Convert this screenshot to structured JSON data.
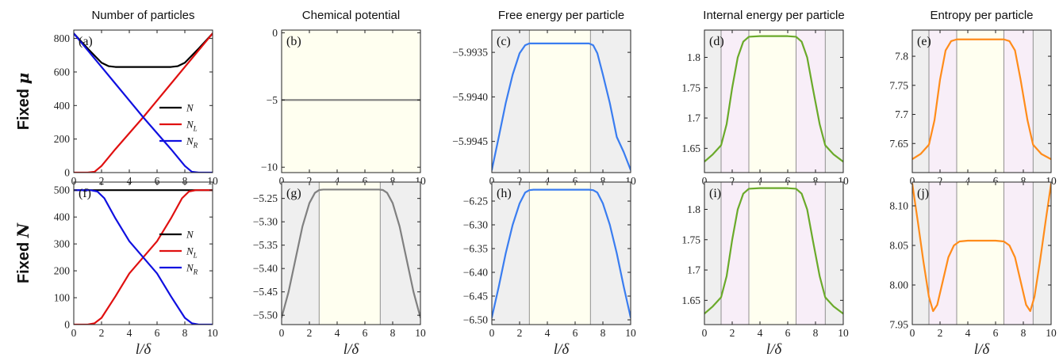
{
  "figure": {
    "column_titles": [
      "Number of particles",
      "Chemical potential",
      "Free energy per particle",
      "Internal energy per particle",
      "Entropy per particle"
    ],
    "row_labels": [
      {
        "text": "Fixed ",
        "symbol": "μ"
      },
      {
        "text": "Fixed ",
        "symbol": "N"
      }
    ],
    "xlabel": "l/δ",
    "colors": {
      "N": "#000000",
      "N_L": "#e01010",
      "N_R": "#1010e0",
      "chemical": "#808080",
      "free": "#3a7df0",
      "internal": "#6aaa2a",
      "entropy": "#ff8c1a",
      "bg_gray": "#efefef",
      "bg_yellow": "#fffff0",
      "bg_pink": "#f8eef8"
    }
  },
  "chart_data": [
    {
      "id": "a",
      "label": "(a)",
      "type": "line",
      "row": 0,
      "col": 0,
      "xlim": [
        0,
        10
      ],
      "ylim": [
        0,
        850
      ],
      "xticks": [
        0,
        2,
        4,
        6,
        8,
        10
      ],
      "yticks": [
        0,
        200,
        400,
        600,
        800
      ],
      "legend": {
        "position": "right",
        "entries": [
          {
            "name": "N",
            "sub": "",
            "color": "#000000"
          },
          {
            "name": "N",
            "sub": "L",
            "color": "#e01010"
          },
          {
            "name": "N",
            "sub": "R",
            "color": "#1010e0"
          }
        ]
      },
      "series": [
        {
          "name": "N",
          "color": "#000000",
          "x": [
            0,
            1,
            2,
            2.5,
            3,
            4,
            5,
            6,
            7,
            7.5,
            8,
            9,
            10
          ],
          "y": [
            830,
            740,
            655,
            635,
            630,
            630,
            630,
            630,
            630,
            635,
            655,
            740,
            830
          ]
        },
        {
          "name": "N_L",
          "color": "#e01010",
          "x": [
            0,
            1,
            1.5,
            2,
            3,
            4,
            5,
            6,
            7,
            8,
            9,
            10
          ],
          "y": [
            0,
            0,
            5,
            40,
            140,
            235,
            330,
            430,
            530,
            630,
            730,
            830
          ]
        },
        {
          "name": "N_R",
          "color": "#1010e0",
          "x": [
            0,
            1,
            2,
            3,
            4,
            5,
            6,
            7,
            8,
            8.5,
            9,
            10
          ],
          "y": [
            830,
            730,
            630,
            530,
            430,
            330,
            235,
            140,
            40,
            5,
            0,
            0
          ]
        }
      ]
    },
    {
      "id": "b",
      "label": "(b)",
      "type": "line",
      "row": 0,
      "col": 1,
      "xlim": [
        0,
        10
      ],
      "ylim": [
        -10.4,
        0.2
      ],
      "xticks": [
        0,
        2,
        4,
        6,
        8,
        10
      ],
      "yticks": [
        -10,
        -5,
        0
      ],
      "background": [
        {
          "from": 0,
          "to": 10,
          "color": "#fffff0"
        }
      ],
      "vlines": [],
      "series": [
        {
          "name": "",
          "color": "#808080",
          "x": [
            0,
            10
          ],
          "y": [
            -5,
            -5
          ]
        }
      ]
    },
    {
      "id": "c",
      "label": "(c)",
      "type": "line",
      "row": 0,
      "col": 2,
      "xlim": [
        0,
        10
      ],
      "ylim": [
        -5.99485,
        -5.99325
      ],
      "xticks": [
        0,
        2,
        4,
        6,
        8,
        10
      ],
      "yticks": [
        -5.9945,
        -5.994,
        -5.9935
      ],
      "ytick_labels": [
        "−5.9945",
        "−5.9940",
        "−5.9935"
      ],
      "background": [
        {
          "from": 0,
          "to": 2.7,
          "color": "#efefef"
        },
        {
          "from": 2.7,
          "to": 7.1,
          "color": "#fffff0"
        },
        {
          "from": 7.1,
          "to": 10,
          "color": "#efefef"
        }
      ],
      "vlines": [
        2.7,
        7.1
      ],
      "series": [
        {
          "name": "",
          "color": "#3a7df0",
          "x": [
            0,
            0.5,
            1,
            1.5,
            2,
            2.4,
            2.7,
            3,
            5,
            7,
            7.3,
            7.6,
            8,
            8.5,
            9,
            9.5,
            10
          ],
          "y": [
            -5.99482,
            -5.99445,
            -5.99407,
            -5.99375,
            -5.99351,
            -5.99342,
            -5.9934,
            -5.9934,
            -5.9934,
            -5.9934,
            -5.99342,
            -5.99351,
            -5.99375,
            -5.99407,
            -5.99445,
            -5.99462,
            -5.99482
          ]
        }
      ]
    },
    {
      "id": "d",
      "label": "(d)",
      "type": "line",
      "row": 0,
      "col": 3,
      "xlim": [
        0,
        10
      ],
      "ylim": [
        1.61,
        1.845
      ],
      "xticks": [
        0,
        2,
        4,
        6,
        8,
        10
      ],
      "yticks": [
        1.65,
        1.7,
        1.75,
        1.8
      ],
      "background": [
        {
          "from": 0,
          "to": 1.2,
          "color": "#efefef"
        },
        {
          "from": 1.2,
          "to": 3.2,
          "color": "#f8eef8"
        },
        {
          "from": 3.2,
          "to": 6.6,
          "color": "#fffff0"
        },
        {
          "from": 6.6,
          "to": 8.7,
          "color": "#f8eef8"
        },
        {
          "from": 8.7,
          "to": 10,
          "color": "#efefef"
        }
      ],
      "vlines": [
        1.2,
        3.2,
        6.6,
        8.7
      ],
      "series": [
        {
          "name": "",
          "color": "#6aaa2a",
          "x": [
            0,
            0.6,
            1.2,
            1.6,
            2,
            2.4,
            2.8,
            3.2,
            4,
            5,
            6,
            6.6,
            7,
            7.4,
            7.8,
            8.3,
            8.7,
            9.3,
            10
          ],
          "y": [
            1.628,
            1.64,
            1.655,
            1.69,
            1.75,
            1.8,
            1.826,
            1.834,
            1.835,
            1.835,
            1.835,
            1.834,
            1.826,
            1.8,
            1.75,
            1.69,
            1.655,
            1.64,
            1.628
          ]
        }
      ]
    },
    {
      "id": "e",
      "label": "(e)",
      "type": "line",
      "row": 0,
      "col": 4,
      "xlim": [
        0,
        10
      ],
      "ylim": [
        7.6,
        7.845
      ],
      "xticks": [
        0,
        2,
        4,
        6,
        8,
        10
      ],
      "yticks": [
        7.65,
        7.7,
        7.75,
        7.8
      ],
      "background": [
        {
          "from": 0,
          "to": 1.2,
          "color": "#efefef"
        },
        {
          "from": 1.2,
          "to": 3.2,
          "color": "#f8eef8"
        },
        {
          "from": 3.2,
          "to": 6.6,
          "color": "#fffff0"
        },
        {
          "from": 6.6,
          "to": 8.7,
          "color": "#f8eef8"
        },
        {
          "from": 8.7,
          "to": 10,
          "color": "#efefef"
        }
      ],
      "vlines": [
        1.2,
        3.2,
        6.6,
        8.7
      ],
      "series": [
        {
          "name": "",
          "color": "#ff8c1a",
          "x": [
            0,
            0.6,
            1.2,
            1.6,
            2,
            2.4,
            2.8,
            3.2,
            4,
            5,
            6,
            6.6,
            7,
            7.4,
            7.8,
            8.3,
            8.7,
            9.3,
            10
          ],
          "y": [
            7.623,
            7.632,
            7.648,
            7.69,
            7.76,
            7.81,
            7.826,
            7.829,
            7.829,
            7.829,
            7.829,
            7.829,
            7.826,
            7.81,
            7.76,
            7.69,
            7.648,
            7.632,
            7.623
          ]
        }
      ]
    },
    {
      "id": "f",
      "label": "(f)",
      "type": "line",
      "row": 1,
      "col": 0,
      "xlim": [
        0,
        10
      ],
      "ylim": [
        0,
        530
      ],
      "xticks": [
        0,
        2,
        4,
        6,
        8,
        10
      ],
      "yticks": [
        0,
        100,
        200,
        300,
        400,
        500
      ],
      "legend": {
        "position": "right",
        "entries": [
          {
            "name": "N",
            "sub": "",
            "color": "#000000"
          },
          {
            "name": "N",
            "sub": "L",
            "color": "#e01010"
          },
          {
            "name": "N",
            "sub": "R",
            "color": "#1010e0"
          }
        ]
      },
      "series": [
        {
          "name": "N",
          "color": "#000000",
          "x": [
            0,
            10
          ],
          "y": [
            500,
            500
          ]
        },
        {
          "name": "N_L",
          "color": "#e01010",
          "x": [
            0,
            1,
            1.5,
            2,
            3,
            4,
            5,
            6,
            7,
            7.8,
            8.3,
            8.8,
            10
          ],
          "y": [
            0,
            0,
            5,
            25,
            105,
            190,
            250,
            310,
            395,
            470,
            495,
            500,
            500
          ]
        },
        {
          "name": "N_R",
          "color": "#1010e0",
          "x": [
            0,
            1.2,
            1.7,
            2.2,
            3,
            4,
            5,
            6,
            7,
            8,
            8.5,
            9,
            10
          ],
          "y": [
            500,
            500,
            495,
            470,
            395,
            310,
            250,
            190,
            105,
            25,
            5,
            0,
            0
          ]
        }
      ]
    },
    {
      "id": "g",
      "label": "(g)",
      "type": "line",
      "row": 1,
      "col": 1,
      "xlim": [
        0,
        10
      ],
      "ylim": [
        -5.52,
        -5.215
      ],
      "xticks": [
        0,
        2,
        4,
        6,
        8,
        10
      ],
      "yticks": [
        -5.5,
        -5.45,
        -5.4,
        -5.35,
        -5.3,
        -5.25
      ],
      "ytick_labels": [
        "−5.50",
        "−5.45",
        "−5.40",
        "−5.35",
        "−5.30",
        "−5.25"
      ],
      "background": [
        {
          "from": 0,
          "to": 2.7,
          "color": "#efefef"
        },
        {
          "from": 2.7,
          "to": 7.1,
          "color": "#fffff0"
        },
        {
          "from": 7.1,
          "to": 10,
          "color": "#efefef"
        }
      ],
      "vlines": [
        2.7,
        7.1
      ],
      "series": [
        {
          "name": "",
          "color": "#808080",
          "x": [
            0,
            0.5,
            1,
            1.5,
            2,
            2.4,
            2.7,
            3,
            5,
            7,
            7.3,
            7.6,
            8,
            8.5,
            9,
            9.5,
            10
          ],
          "y": [
            -5.505,
            -5.45,
            -5.38,
            -5.31,
            -5.26,
            -5.238,
            -5.232,
            -5.231,
            -5.231,
            -5.231,
            -5.232,
            -5.238,
            -5.26,
            -5.31,
            -5.38,
            -5.45,
            -5.505
          ]
        }
      ]
    },
    {
      "id": "h",
      "label": "(h)",
      "type": "line",
      "row": 1,
      "col": 2,
      "xlim": [
        0,
        10
      ],
      "ylim": [
        -6.51,
        -6.21
      ],
      "xticks": [
        0,
        2,
        4,
        6,
        8,
        10
      ],
      "yticks": [
        -6.5,
        -6.45,
        -6.4,
        -6.35,
        -6.3,
        -6.25
      ],
      "ytick_labels": [
        "−6.50",
        "−6.45",
        "−6.40",
        "−6.35",
        "−6.30",
        "−6.25"
      ],
      "background": [
        {
          "from": 0,
          "to": 2.7,
          "color": "#efefef"
        },
        {
          "from": 2.7,
          "to": 7.1,
          "color": "#fffff0"
        },
        {
          "from": 7.1,
          "to": 10,
          "color": "#efefef"
        }
      ],
      "vlines": [
        2.7,
        7.1
      ],
      "series": [
        {
          "name": "",
          "color": "#3a7df0",
          "x": [
            0,
            0.5,
            1,
            1.5,
            2,
            2.4,
            2.7,
            3,
            5,
            7,
            7.3,
            7.6,
            8,
            8.5,
            9,
            9.5,
            10
          ],
          "y": [
            -6.495,
            -6.43,
            -6.36,
            -6.3,
            -6.255,
            -6.232,
            -6.227,
            -6.226,
            -6.226,
            -6.226,
            -6.227,
            -6.232,
            -6.255,
            -6.3,
            -6.36,
            -6.43,
            -6.495
          ]
        }
      ]
    },
    {
      "id": "i",
      "label": "(i)",
      "type": "line",
      "row": 1,
      "col": 3,
      "xlim": [
        0,
        10
      ],
      "ylim": [
        1.61,
        1.845
      ],
      "xticks": [
        0,
        2,
        4,
        6,
        8,
        10
      ],
      "yticks": [
        1.65,
        1.7,
        1.75,
        1.8
      ],
      "background": [
        {
          "from": 0,
          "to": 1.2,
          "color": "#efefef"
        },
        {
          "from": 1.2,
          "to": 3.2,
          "color": "#f8eef8"
        },
        {
          "from": 3.2,
          "to": 6.6,
          "color": "#fffff0"
        },
        {
          "from": 6.6,
          "to": 8.7,
          "color": "#f8eef8"
        },
        {
          "from": 8.7,
          "to": 10,
          "color": "#efefef"
        }
      ],
      "vlines": [
        1.2,
        3.2,
        6.6,
        8.7
      ],
      "series": [
        {
          "name": "",
          "color": "#6aaa2a",
          "x": [
            0,
            0.6,
            1.2,
            1.6,
            2,
            2.4,
            2.8,
            3.2,
            4,
            5,
            6,
            6.6,
            7,
            7.4,
            7.8,
            8.3,
            8.7,
            9.3,
            10
          ],
          "y": [
            1.628,
            1.64,
            1.655,
            1.69,
            1.75,
            1.8,
            1.826,
            1.834,
            1.835,
            1.835,
            1.835,
            1.834,
            1.826,
            1.8,
            1.75,
            1.69,
            1.655,
            1.64,
            1.628
          ]
        }
      ]
    },
    {
      "id": "j",
      "label": "(j)",
      "type": "line",
      "row": 1,
      "col": 4,
      "xlim": [
        0,
        10
      ],
      "ylim": [
        7.95,
        8.13
      ],
      "xticks": [
        0,
        2,
        4,
        6,
        8,
        10
      ],
      "yticks": [
        7.95,
        8.0,
        8.05,
        8.1
      ],
      "ytick_labels": [
        "7.95",
        "8.00",
        "8.05",
        "8.10"
      ],
      "background": [
        {
          "from": 0,
          "to": 1.2,
          "color": "#efefef"
        },
        {
          "from": 1.2,
          "to": 3.2,
          "color": "#f8eef8"
        },
        {
          "from": 3.2,
          "to": 6.6,
          "color": "#fffff0"
        },
        {
          "from": 6.6,
          "to": 8.7,
          "color": "#f8eef8"
        },
        {
          "from": 8.7,
          "to": 10,
          "color": "#efefef"
        }
      ],
      "vlines": [
        1.2,
        3.2,
        6.6,
        8.7
      ],
      "series": [
        {
          "name": "",
          "color": "#ff8c1a",
          "x": [
            0,
            0.4,
            0.8,
            1.2,
            1.5,
            1.8,
            2.2,
            2.6,
            3,
            3.4,
            4,
            5,
            6,
            6.6,
            7,
            7.4,
            7.8,
            8.2,
            8.5,
            8.8,
            9.2,
            9.6,
            10
          ],
          "y": [
            8.128,
            8.08,
            8.03,
            7.985,
            7.967,
            7.975,
            8.005,
            8.035,
            8.05,
            8.055,
            8.056,
            8.056,
            8.056,
            8.055,
            8.05,
            8.035,
            8.005,
            7.975,
            7.967,
            7.985,
            8.03,
            8.08,
            8.128
          ]
        }
      ]
    }
  ]
}
